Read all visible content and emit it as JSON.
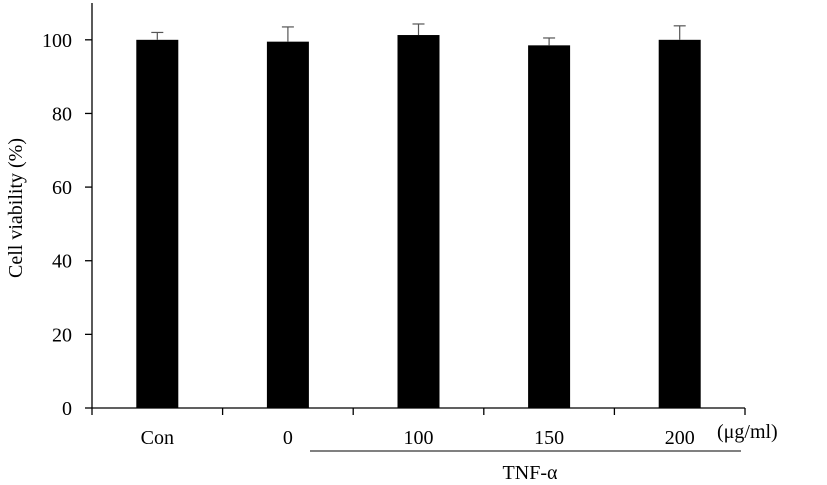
{
  "chart_data": {
    "type": "bar",
    "categories": [
      "Con",
      "0",
      "100",
      "150",
      "200"
    ],
    "values": [
      100.0,
      99.5,
      101.3,
      98.5,
      100.0
    ],
    "errors": [
      2.0,
      4.0,
      3.0,
      2.0,
      3.8
    ],
    "xlabel": "",
    "ylabel": "Cell viability (%)",
    "unit_label": "(μg/ml)",
    "group_label": "TNF-α",
    "ylim": [
      0,
      110
    ],
    "yticks": [
      0,
      20,
      40,
      60,
      80,
      100
    ],
    "grid": false,
    "bar_color": "#000000"
  }
}
